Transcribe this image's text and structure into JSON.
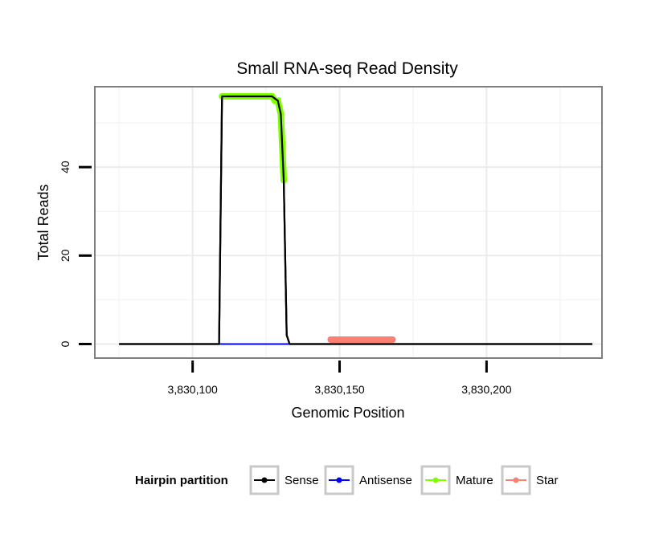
{
  "chart_data": {
    "type": "line",
    "title": "Small RNA-seq Read Density",
    "xlabel": "Genomic Position",
    "ylabel": "Total Reads",
    "xlim": [
      3830067,
      3830239
    ],
    "ylim": [
      -3,
      58
    ],
    "x_ticks": [
      3830100,
      3830150,
      3830200
    ],
    "x_tick_labels": [
      "3,830,100",
      "3,830,150",
      "3,830,200"
    ],
    "y_ticks": [
      0,
      20,
      40
    ],
    "y_tick_labels": [
      "0",
      "20",
      "40"
    ],
    "grid": true,
    "legend": {
      "title": "Hairpin partition",
      "placement": "bottom",
      "entries": [
        "Sense",
        "Antisense",
        "Mature",
        "Star"
      ]
    },
    "series": [
      {
        "name": "Sense",
        "color": "#000000",
        "x": [
          3830075,
          3830084,
          3830094,
          3830104,
          3830108,
          3830109,
          3830110,
          3830127,
          3830129,
          3830130,
          3830131,
          3830132,
          3830133,
          3830145,
          3830155,
          3830165,
          3830175,
          3830185,
          3830195,
          3830205,
          3830215,
          3830228,
          3830236
        ],
        "values": [
          0,
          0,
          0,
          0,
          0,
          0,
          56,
          56,
          55,
          52,
          37,
          2,
          0,
          0,
          0,
          0,
          0,
          0,
          0,
          0,
          0,
          0,
          0
        ]
      },
      {
        "name": "Antisense",
        "color": "#0000ff",
        "x": [
          3830109,
          3830133
        ],
        "values": [
          0,
          0
        ]
      },
      {
        "name": "Mature",
        "color": "#7fff00",
        "x": [
          3830110,
          3830111,
          3830112,
          3830113,
          3830114,
          3830115,
          3830116,
          3830117,
          3830118,
          3830119,
          3830120,
          3830121,
          3830122,
          3830123,
          3830124,
          3830125,
          3830126,
          3830127,
          3830128,
          3830129,
          3830130,
          3830131
        ],
        "values": [
          56,
          56,
          56,
          56,
          56,
          56,
          56,
          56,
          56,
          56,
          56,
          56,
          56,
          56,
          56,
          56,
          56,
          56,
          55,
          55,
          52,
          37
        ]
      },
      {
        "name": "Star",
        "color": "#fa8072",
        "x": [
          3830147,
          3830148,
          3830149,
          3830150,
          3830151,
          3830152,
          3830153,
          3830154,
          3830155,
          3830156,
          3830157,
          3830158,
          3830159,
          3830160,
          3830161,
          3830162,
          3830163,
          3830164,
          3830165,
          3830166,
          3830167,
          3830168
        ],
        "values": [
          1,
          1,
          1,
          1,
          1,
          1,
          1,
          1,
          1,
          1,
          1,
          1,
          1,
          1,
          1,
          1,
          1,
          1,
          1,
          1,
          1,
          1
        ]
      }
    ]
  }
}
